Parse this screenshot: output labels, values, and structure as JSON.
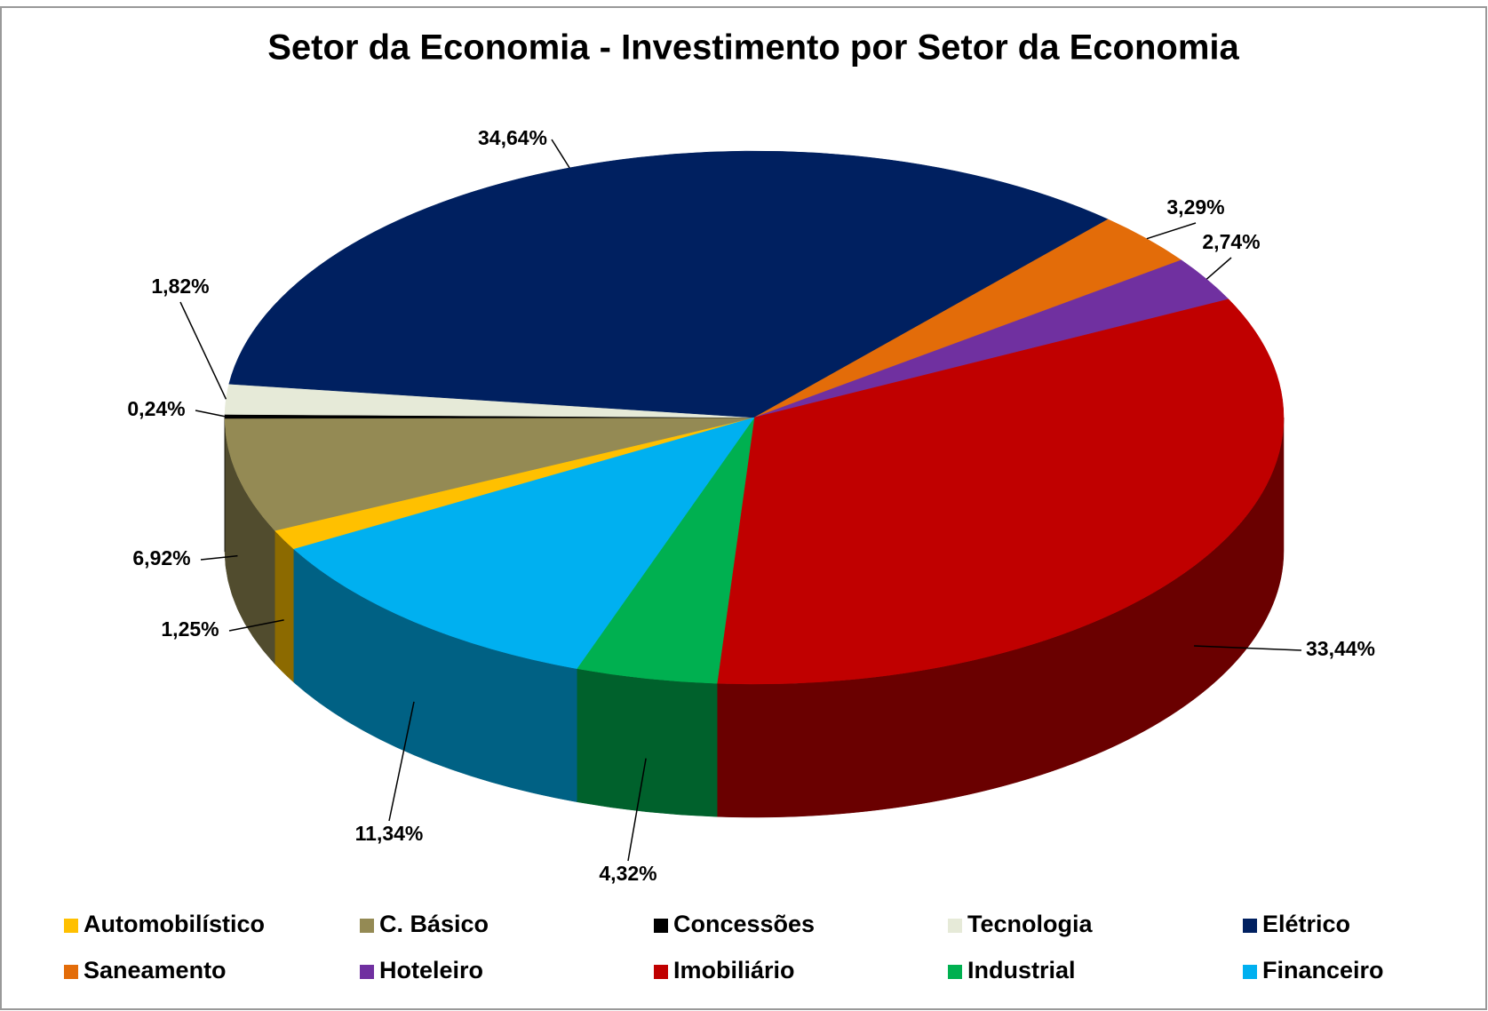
{
  "chart_data": {
    "type": "pie",
    "title": "Setor da Economia - Investimento por Setor da Economia",
    "categories": [
      "Automobilístico",
      "C. Básico",
      "Concessões",
      "Tecnologia",
      "Elétrico",
      "Saneamento",
      "Hoteleiro",
      "Imobiliário",
      "Industrial",
      "Financeiro"
    ],
    "values": [
      1.25,
      6.92,
      0.24,
      1.82,
      34.64,
      3.29,
      2.74,
      33.44,
      4.32,
      11.34
    ],
    "value_labels": [
      "1,25%",
      "6,92%",
      "0,24%",
      "1,82%",
      "34,64%",
      "3,29%",
      "2,74%",
      "33,44%",
      "4,32%",
      "11,34%"
    ],
    "colors": [
      "#FFC000",
      "#948A54",
      "#000000",
      "#E6EAD8",
      "#002060",
      "#E36C09",
      "#7030A0",
      "#C00000",
      "#00B050",
      "#00B0F0"
    ],
    "legend": "bottom"
  }
}
